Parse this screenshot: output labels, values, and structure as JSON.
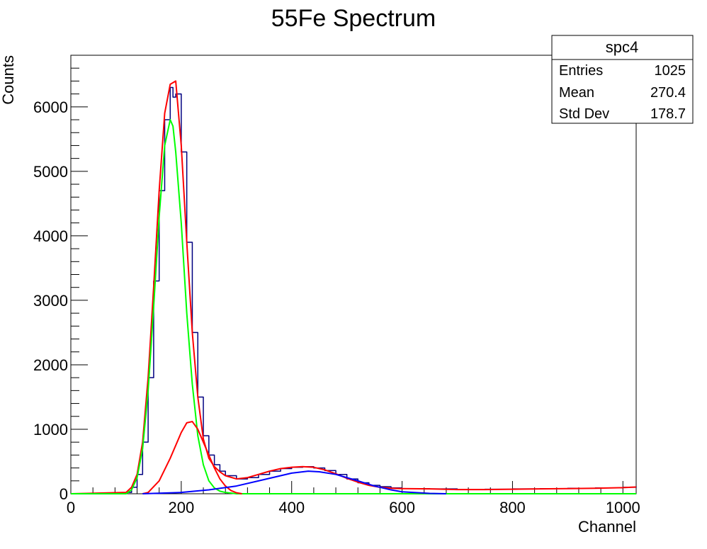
{
  "chart_data": {
    "type": "line",
    "title": "55Fe Spectrum",
    "xlabel": "Channel",
    "ylabel": "Counts",
    "xlim": [
      0,
      1024
    ],
    "ylim": [
      0,
      6800
    ],
    "xticks": [
      0,
      200,
      400,
      600,
      800,
      1000
    ],
    "yticks": [
      0,
      1000,
      2000,
      3000,
      4000,
      5000,
      6000
    ],
    "grid": false,
    "stats_box": {
      "title": "spc4",
      "rows": [
        {
          "label": "Entries",
          "value": "1025"
        },
        {
          "label": "Mean",
          "value": "270.4"
        },
        {
          "label": "Std Dev",
          "value": "178.7"
        }
      ],
      "placement": "top-right"
    },
    "series": [
      {
        "color": "#000080",
        "style": "histogram",
        "x": [
          0,
          100,
          110,
          120,
          130,
          140,
          150,
          160,
          170,
          180,
          185,
          190,
          200,
          210,
          220,
          230,
          240,
          250,
          260,
          270,
          280,
          300,
          320,
          340,
          360,
          380,
          400,
          420,
          440,
          460,
          480,
          500,
          520,
          540,
          560,
          580,
          600,
          650,
          700,
          750,
          800,
          850,
          900,
          950,
          1000,
          1024
        ],
        "y": [
          0,
          20,
          100,
          300,
          800,
          1800,
          3300,
          4700,
          5800,
          6300,
          6150,
          6200,
          5300,
          3900,
          2500,
          1500,
          900,
          600,
          450,
          350,
          280,
          230,
          250,
          300,
          350,
          390,
          410,
          420,
          400,
          360,
          300,
          230,
          170,
          130,
          110,
          90,
          80,
          75,
          65,
          70,
          75,
          80,
          85,
          90,
          100,
          110
        ]
      },
      {
        "color": "#ff0000",
        "x": [
          0,
          100,
          110,
          120,
          130,
          140,
          150,
          160,
          170,
          180,
          190,
          200,
          210,
          220,
          230,
          240,
          250,
          260,
          270,
          280,
          300,
          320,
          340,
          360,
          380,
          400,
          420,
          440,
          460,
          480,
          500,
          520,
          540,
          560,
          580,
          600,
          650,
          700,
          750,
          800,
          850,
          900,
          950,
          1000,
          1024
        ],
        "y": [
          0,
          20,
          100,
          300,
          800,
          1800,
          3200,
          4700,
          5900,
          6350,
          6400,
          5400,
          3900,
          2500,
          1500,
          850,
          550,
          420,
          340,
          280,
          230,
          250,
          300,
          350,
          390,
          410,
          420,
          410,
          370,
          310,
          240,
          180,
          130,
          100,
          85,
          80,
          75,
          65,
          65,
          70,
          75,
          80,
          85,
          95,
          105
        ]
      },
      {
        "color": "#00ff00",
        "x": [
          0,
          100,
          110,
          120,
          130,
          140,
          150,
          160,
          170,
          180,
          185,
          190,
          200,
          210,
          220,
          230,
          240,
          250,
          260,
          270,
          280,
          300,
          350,
          700,
          1024
        ],
        "y": [
          0,
          0,
          60,
          250,
          700,
          1600,
          2900,
          4300,
          5400,
          5800,
          5700,
          5300,
          4200,
          2800,
          1700,
          900,
          450,
          200,
          90,
          40,
          20,
          0,
          0,
          0,
          0
        ]
      },
      {
        "color": "#ff0000",
        "x": [
          130,
          140,
          160,
          180,
          200,
          210,
          220,
          230,
          240,
          250,
          260,
          270,
          280,
          290,
          300,
          310
        ],
        "y": [
          0,
          20,
          200,
          550,
          950,
          1100,
          1120,
          1000,
          800,
          600,
          400,
          230,
          120,
          50,
          15,
          0
        ]
      },
      {
        "color": "#0000ff",
        "x": [
          130,
          150,
          200,
          250,
          300,
          350,
          400,
          430,
          450,
          480,
          500,
          520,
          550,
          580,
          600,
          650,
          680
        ],
        "y": [
          0,
          5,
          20,
          60,
          120,
          220,
          320,
          350,
          340,
          300,
          250,
          200,
          120,
          60,
          30,
          5,
          0
        ]
      }
    ]
  }
}
